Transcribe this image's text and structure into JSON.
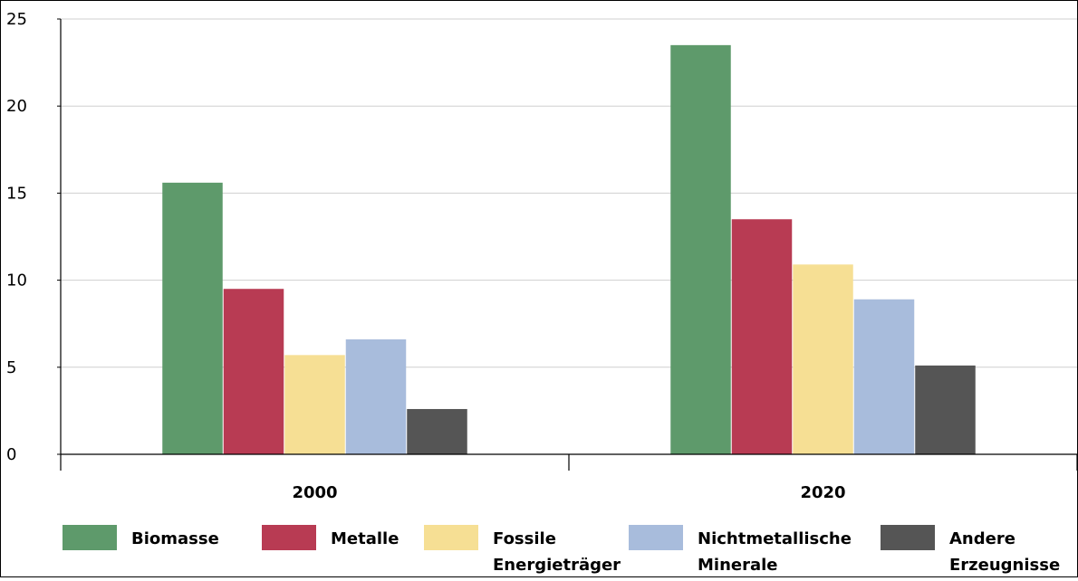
{
  "chart_data": {
    "type": "bar",
    "categories": [
      "2000",
      "2020"
    ],
    "series": [
      {
        "name": "Biomasse",
        "color": "#5e9a6b",
        "values": [
          15.6,
          23.5
        ]
      },
      {
        "name": "Metalle",
        "color": "#b83b53",
        "values": [
          9.5,
          13.5
        ]
      },
      {
        "name": "Fossile Energieträger",
        "color": "#f6df94",
        "values": [
          5.7,
          10.9
        ]
      },
      {
        "name": "Nichtmetallische Minerale",
        "color": "#a8bcdc",
        "values": [
          6.6,
          8.9
        ]
      },
      {
        "name": "Andere Erzeugnisse",
        "color": "#555555",
        "values": [
          2.6,
          5.1
        ]
      }
    ],
    "legend_lines": [
      [
        "Biomasse"
      ],
      [
        "Metalle"
      ],
      [
        "Fossile",
        "Energieträger"
      ],
      [
        "Nichtmetallische",
        "Minerale"
      ],
      [
        "Andere",
        "Erzeugnisse"
      ]
    ],
    "yticks": [
      "0",
      "5",
      "10",
      "15",
      "20",
      "25"
    ],
    "ylim": [
      0,
      25
    ],
    "grid": true,
    "legend_position": "bottom"
  }
}
